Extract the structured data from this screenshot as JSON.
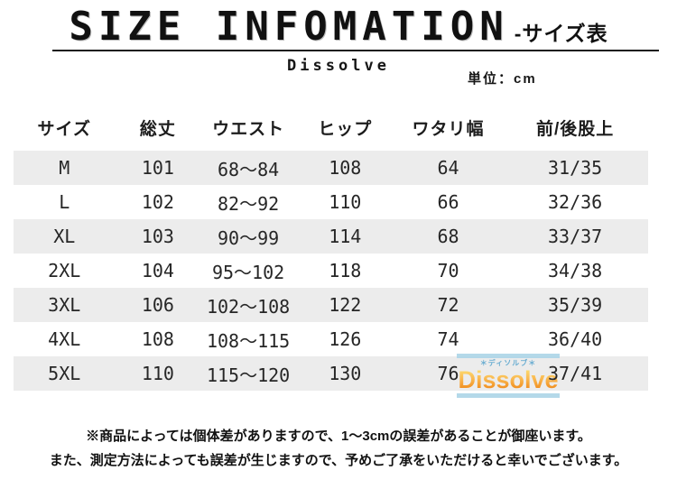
{
  "header": {
    "title": "SIZE INFOMATION",
    "subtitle": "-サイズ表",
    "brand": "Dissolve",
    "unit_label": "単位：cm"
  },
  "table": {
    "columns": [
      "サイズ",
      "総丈",
      "ウエスト",
      "ヒップ",
      "ワタリ幅",
      "前/後股上"
    ],
    "rows": [
      [
        "M",
        "101",
        "68～84",
        "108",
        "64",
        "31/35"
      ],
      [
        "L",
        "102",
        "82～92",
        "110",
        "66",
        "32/36"
      ],
      [
        "XL",
        "103",
        "90～99",
        "114",
        "68",
        "33/37"
      ],
      [
        "2XL",
        "104",
        "95～102",
        "118",
        "70",
        "34/38"
      ],
      [
        "3XL",
        "106",
        "102～108",
        "122",
        "72",
        "35/39"
      ],
      [
        "4XL",
        "108",
        "108～115",
        "126",
        "74",
        "36/40"
      ],
      [
        "5XL",
        "110",
        "115～120",
        "130",
        "76",
        "37/41"
      ]
    ]
  },
  "watermark": {
    "text": "Dissolve",
    "ruby": "＊ディソルブ＊"
  },
  "notes": [
    "※商品によっては個体差がありますので、1～3cmの誤差があることが御座います。",
    "また、測定方法によっても誤差が生じますので、予めご了承をいただけると幸いでございます。"
  ],
  "colors": {
    "row_alt_background": "#ececec",
    "title_underline": "#1a1a1a",
    "watermark_orange": "#f59000",
    "watermark_blue": "#aed6e8",
    "text": "#1f1f1f"
  }
}
